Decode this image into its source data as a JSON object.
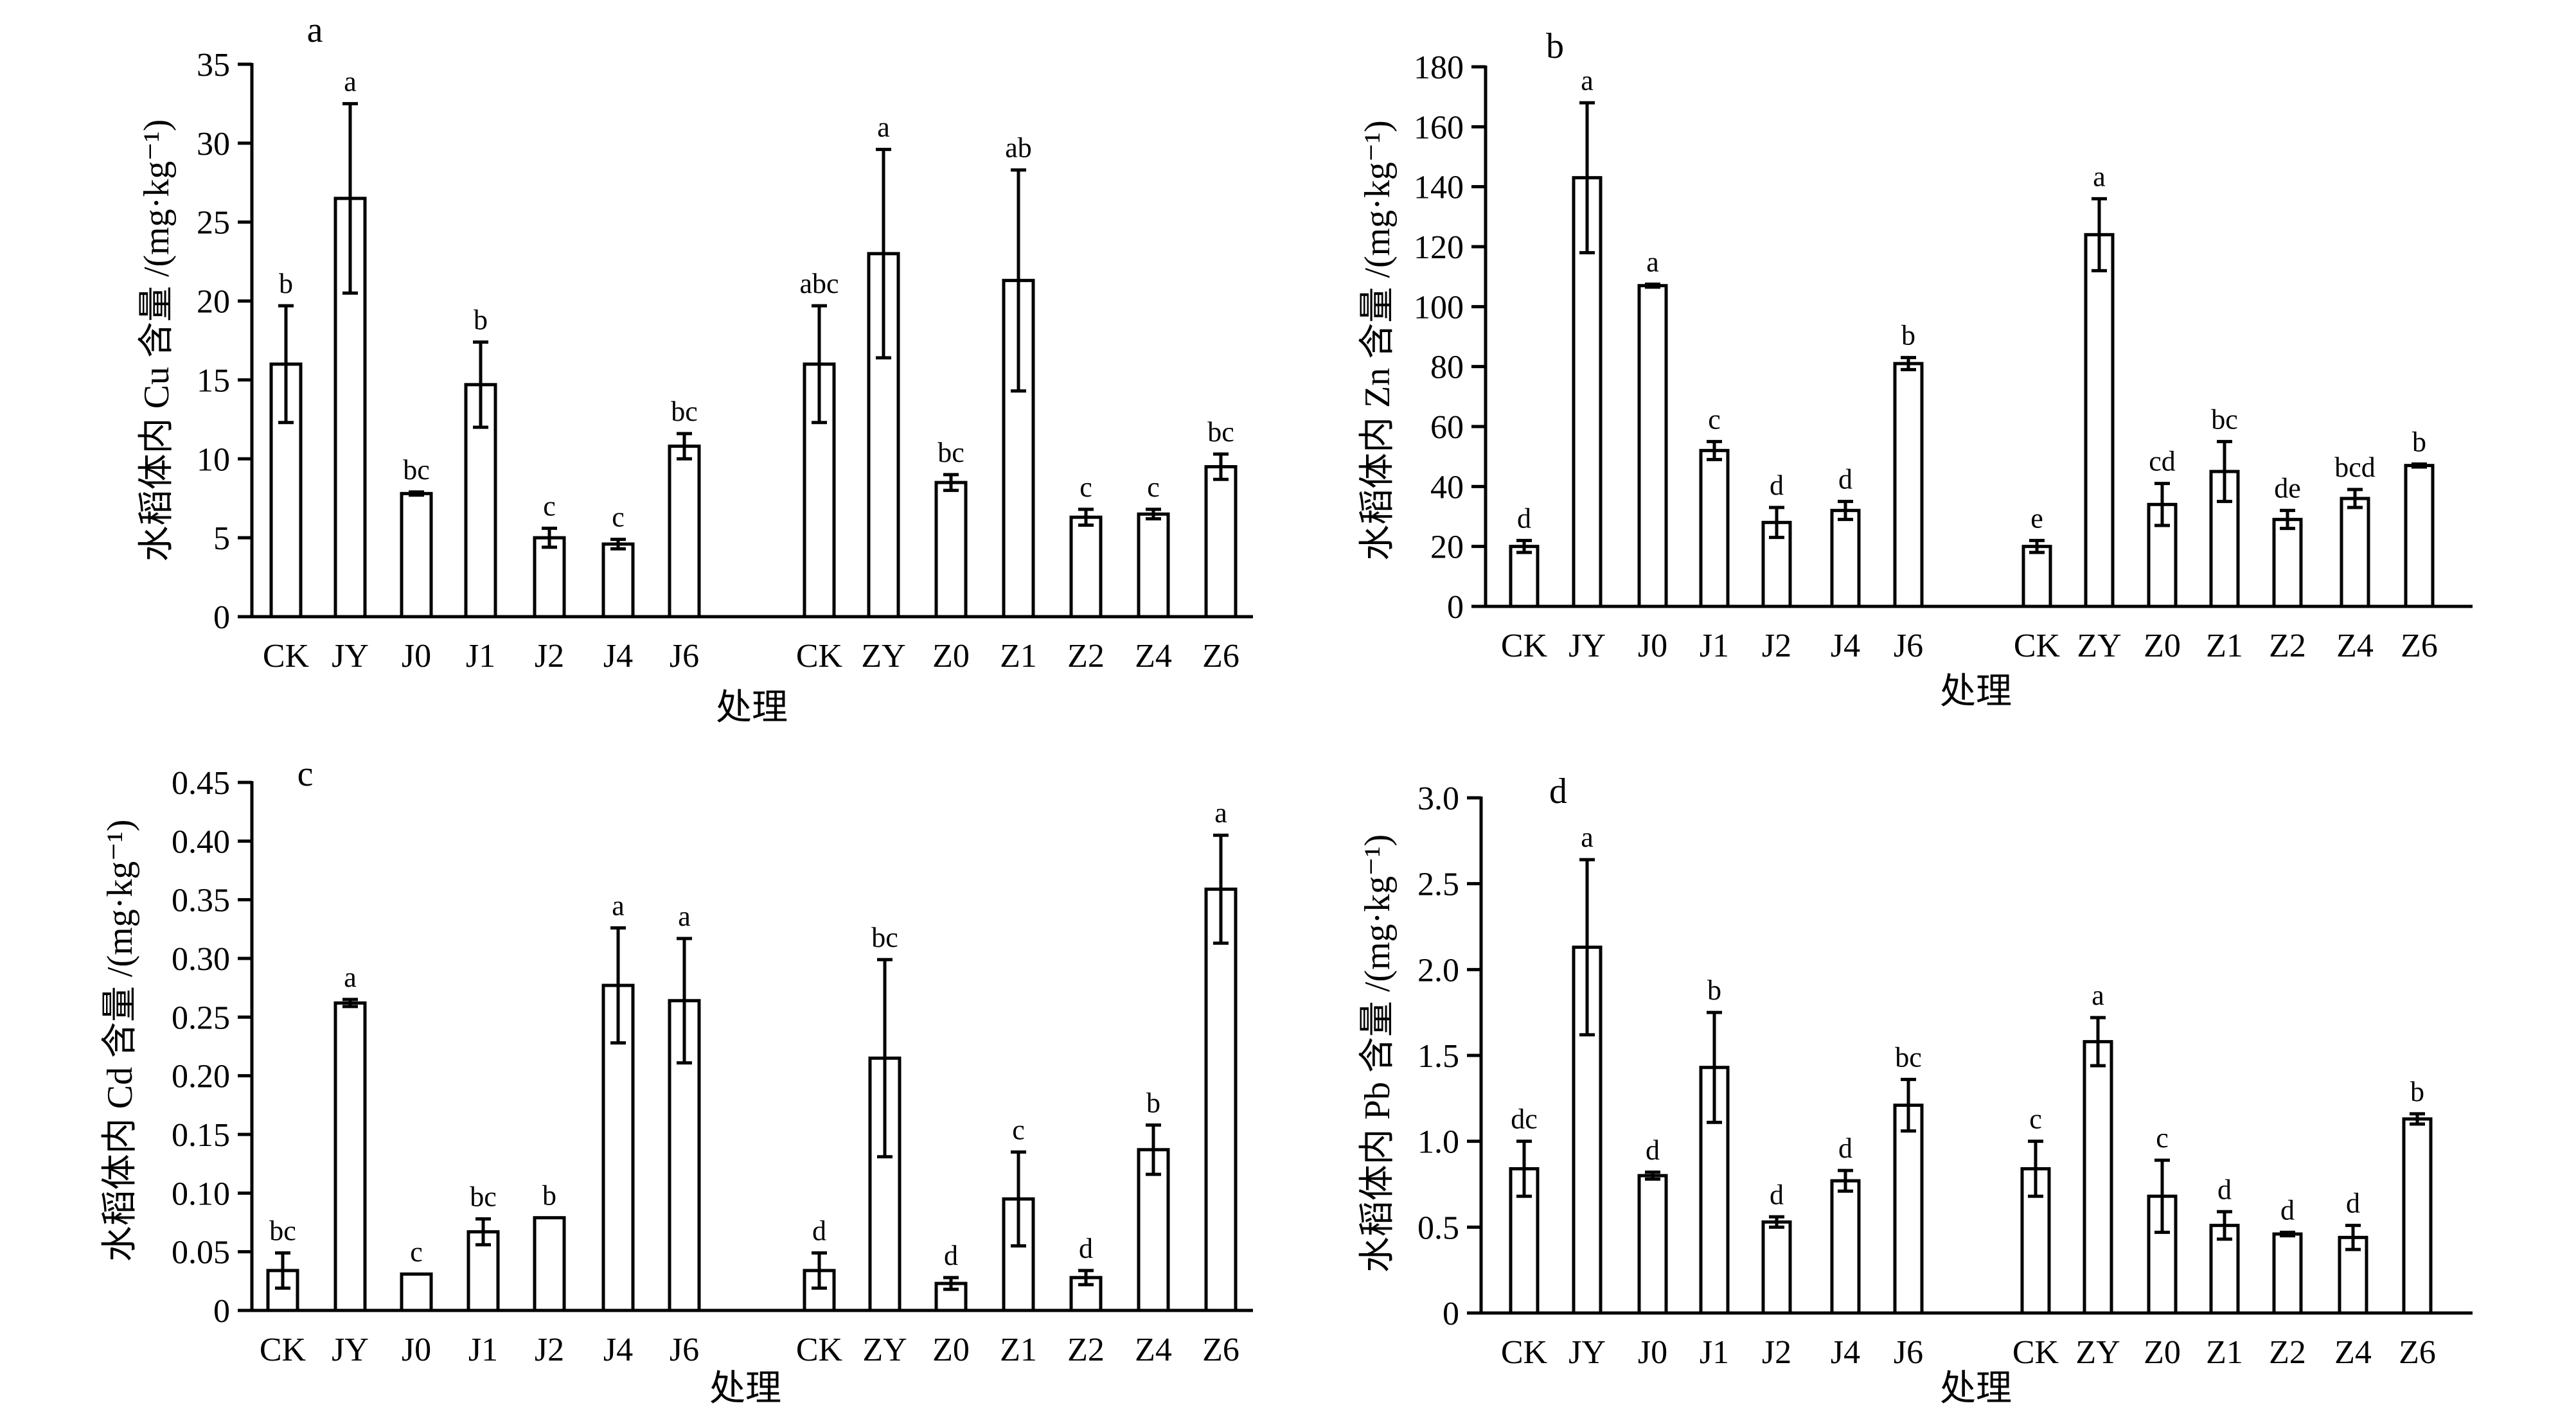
{
  "chart_data": [
    {
      "type": "bar",
      "panel_label": "a",
      "categories": [
        "CK",
        "JY",
        "J0",
        "J1",
        "J2",
        "J4",
        "J6",
        "CK",
        "ZY",
        "Z0",
        "Z1",
        "Z2",
        "Z4",
        "Z6"
      ],
      "values": [
        16.0,
        26.5,
        7.8,
        14.7,
        5.0,
        4.6,
        10.8,
        16.0,
        23.0,
        8.5,
        21.3,
        6.3,
        6.5,
        9.5
      ],
      "errors": [
        3.7,
        6.0,
        0.1,
        2.7,
        0.6,
        0.3,
        0.8,
        3.7,
        6.6,
        0.5,
        7.0,
        0.5,
        0.3,
        0.8
      ],
      "letters": [
        "b",
        "a",
        "bc",
        "b",
        "c",
        "c",
        "bc",
        "abc",
        "a",
        "bc",
        "ab",
        "c",
        "c",
        "bc"
      ],
      "ylabel": "水稻体内 Cu 含量 /(mg·kg⁻¹)",
      "xlabel": "处理",
      "ylim": [
        0,
        35
      ],
      "yticks": [
        "0",
        "5",
        "10",
        "15",
        "20",
        "25",
        "30",
        "35"
      ]
    },
    {
      "type": "bar",
      "panel_label": "b",
      "categories": [
        "CK",
        "JY",
        "J0",
        "J1",
        "J2",
        "J4",
        "J6",
        "CK",
        "ZY",
        "Z0",
        "Z1",
        "Z2",
        "Z4",
        "Z6"
      ],
      "values": [
        20,
        143,
        107,
        52,
        28,
        32,
        81,
        20,
        124,
        34,
        45,
        29,
        36,
        47
      ],
      "errors": [
        2,
        25,
        0.5,
        3,
        5,
        3,
        2,
        2,
        12,
        7,
        10,
        3,
        3,
        0.5
      ],
      "letters": [
        "d",
        "a",
        "a",
        "c",
        "d",
        "d",
        "b",
        "e",
        "a",
        "cd",
        "bc",
        "de",
        "bcd",
        "b"
      ],
      "ylabel": "水稻体内 Zn 含量 /(mg·kg⁻¹)",
      "xlabel": "处理",
      "ylim": [
        0,
        180
      ],
      "yticks": [
        "0",
        "20",
        "40",
        "60",
        "80",
        "100",
        "120",
        "140",
        "160",
        "180"
      ]
    },
    {
      "type": "bar",
      "panel_label": "c",
      "categories": [
        "CK",
        "JY",
        "J0",
        "J1",
        "J2",
        "J4",
        "J6",
        "CK",
        "ZY",
        "Z0",
        "Z1",
        "Z2",
        "Z4",
        "Z6"
      ],
      "values": [
        0.034,
        0.262,
        0.031,
        0.067,
        0.079,
        0.277,
        0.264,
        0.034,
        0.215,
        0.023,
        0.095,
        0.028,
        0.137,
        0.359
      ],
      "errors": [
        0.015,
        0.003,
        0.0,
        0.011,
        0.0,
        0.049,
        0.053,
        0.015,
        0.084,
        0.005,
        0.04,
        0.006,
        0.021,
        0.046
      ],
      "letters": [
        "bc",
        "a",
        "c",
        "bc",
        "b",
        "a",
        "a",
        "d",
        "bc",
        "d",
        "c",
        "d",
        "b",
        "a"
      ],
      "ylabel": "水稻体内 Cd 含量 /(mg·kg⁻¹)",
      "xlabel": "处理",
      "ylim": [
        0,
        0.45
      ],
      "yticks": [
        "0",
        "0.05",
        "0.10",
        "0.15",
        "0.20",
        "0.25",
        "0.30",
        "0.35",
        "0.40",
        "0.45"
      ]
    },
    {
      "type": "bar",
      "panel_label": "d",
      "categories": [
        "CK",
        "JY",
        "J0",
        "J1",
        "J2",
        "J4",
        "J6",
        "CK",
        "ZY",
        "Z0",
        "Z1",
        "Z2",
        "Z4",
        "Z6"
      ],
      "values": [
        0.84,
        2.13,
        0.8,
        1.43,
        0.53,
        0.77,
        1.21,
        0.84,
        1.58,
        0.68,
        0.51,
        0.46,
        0.44,
        1.13
      ],
      "errors": [
        0.16,
        0.51,
        0.02,
        0.32,
        0.03,
        0.06,
        0.15,
        0.16,
        0.14,
        0.21,
        0.08,
        0.01,
        0.07,
        0.03
      ],
      "letters": [
        "dc",
        "a",
        "d",
        "b",
        "d",
        "d",
        "bc",
        "c",
        "a",
        "c",
        "d",
        "d",
        "d",
        "b"
      ],
      "ylabel": "水稻体内 Pb 含量 /(mg·kg⁻¹)",
      "xlabel": "处理",
      "ylim": [
        0,
        3.0
      ],
      "yticks": [
        "0",
        "0.5",
        "1.0",
        "1.5",
        "2.0",
        "2.5",
        "3.0"
      ]
    }
  ]
}
